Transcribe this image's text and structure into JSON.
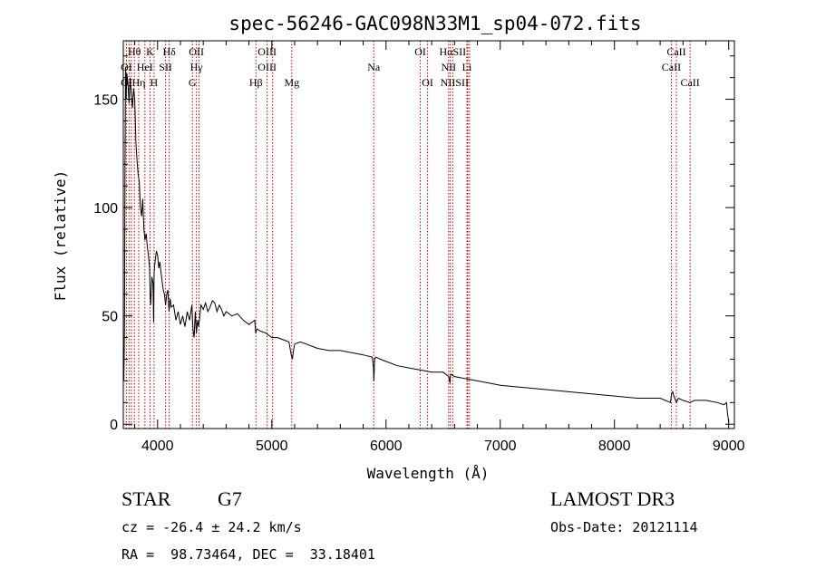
{
  "chart_data": {
    "type": "line",
    "title": "spec-56246-GAC098N33M1_sp04-072.fits",
    "xlabel": "Wavelength (Å)",
    "ylabel": "Flux (relative)",
    "xlim": [
      3700,
      9050
    ],
    "ylim": [
      -2,
      177
    ],
    "x_ticks": [
      4000,
      5000,
      6000,
      7000,
      8000,
      9000
    ],
    "y_ticks": [
      0,
      50,
      100,
      150
    ],
    "series": [
      {
        "name": "flux",
        "x": [
          3700,
          3705,
          3710,
          3715,
          3720,
          3725,
          3730,
          3740,
          3750,
          3760,
          3770,
          3780,
          3790,
          3800,
          3810,
          3820,
          3830,
          3840,
          3850,
          3860,
          3870,
          3880,
          3890,
          3900,
          3910,
          3920,
          3930,
          3935,
          3940,
          3950,
          3960,
          3965,
          3970,
          3980,
          3990,
          4000,
          4010,
          4020,
          4030,
          4040,
          4050,
          4060,
          4070,
          4080,
          4090,
          4100,
          4110,
          4120,
          4140,
          4160,
          4180,
          4200,
          4220,
          4240,
          4260,
          4280,
          4300,
          4310,
          4320,
          4330,
          4340,
          4350,
          4360,
          4370,
          4380,
          4400,
          4420,
          4440,
          4460,
          4480,
          4500,
          4520,
          4540,
          4560,
          4580,
          4600,
          4650,
          4700,
          4750,
          4800,
          4850,
          4860,
          4870,
          4900,
          4950,
          5000,
          5050,
          5100,
          5150,
          5170,
          5180,
          5190,
          5200,
          5250,
          5300,
          5400,
          5500,
          5600,
          5700,
          5800,
          5880,
          5890,
          5893,
          5896,
          5900,
          5910,
          5950,
          6000,
          6100,
          6200,
          6300,
          6400,
          6500,
          6550,
          6560,
          6563,
          6566,
          6570,
          6600,
          6700,
          6800,
          6900,
          7000,
          7200,
          7400,
          7600,
          7800,
          8000,
          8200,
          8400,
          8490,
          8500,
          8510,
          8520,
          8542,
          8560,
          8600,
          8662,
          8700,
          8800,
          8900,
          8960,
          8980,
          8990,
          9000
        ],
        "y": [
          32,
          20,
          45,
          120,
          165,
          150,
          162,
          158,
          148,
          160,
          152,
          146,
          155,
          150,
          130,
          122,
          115,
          112,
          100,
          96,
          104,
          90,
          85,
          88,
          82,
          78,
          72,
          60,
          55,
          68,
          65,
          47,
          70,
          76,
          80,
          78,
          72,
          75,
          70,
          66,
          62,
          60,
          55,
          60,
          62,
          52,
          58,
          54,
          55,
          48,
          52,
          46,
          50,
          45,
          52,
          48,
          55,
          44,
          40,
          52,
          42,
          48,
          45,
          50,
          55,
          53,
          56,
          52,
          54,
          57,
          56,
          52,
          55,
          53,
          50,
          52,
          50,
          51,
          48,
          46,
          48,
          42,
          44,
          43,
          42,
          40,
          40,
          39,
          38,
          32,
          30,
          34,
          37,
          38,
          37,
          35,
          34,
          34,
          33,
          32,
          31,
          26,
          20,
          24,
          30,
          31,
          30,
          29,
          27,
          26,
          25,
          24,
          24,
          22,
          19,
          22,
          23,
          23,
          22,
          21,
          20,
          19,
          18,
          17,
          16,
          15,
          14,
          13,
          12,
          12,
          10,
          14,
          15,
          13,
          10,
          12,
          11,
          10,
          11,
          11,
          10,
          9,
          10,
          5,
          1
        ]
      }
    ],
    "line_markers": [
      {
        "label": "Hθ",
        "x": 3797,
        "row": 1
      },
      {
        "label": "K",
        "x": 3934,
        "row": 1
      },
      {
        "label": "Hδ",
        "x": 4102,
        "row": 1
      },
      {
        "label": "OII",
        "x": 4340,
        "row": 1
      },
      {
        "label": "OIII",
        "x": 4959,
        "row": 1
      },
      {
        "label": "OI",
        "x": 6300,
        "row": 1
      },
      {
        "label": "HαSII",
        "x": 6584,
        "row": 1
      },
      {
        "label": "CaII",
        "x": 8542,
        "row": 1
      },
      {
        "label": "OI",
        "x": 3727,
        "row": 2
      },
      {
        "label": "HeI",
        "x": 3889,
        "row": 2
      },
      {
        "label": "SII",
        "x": 4070,
        "row": 2
      },
      {
        "label": "Hγ",
        "x": 4340,
        "row": 2
      },
      {
        "label": "OIII",
        "x": 4959,
        "row": 2
      },
      {
        "label": "Na",
        "x": 5893,
        "row": 2
      },
      {
        "label": "NII",
        "x": 6548,
        "row": 2
      },
      {
        "label": "Li",
        "x": 6708,
        "row": 2
      },
      {
        "label": "CaII",
        "x": 8498,
        "row": 2
      },
      {
        "label": "OI",
        "x": 3727,
        "row": 3
      },
      {
        "label": "Hη",
        "x": 3835,
        "row": 3
      },
      {
        "label": "H",
        "x": 3969,
        "row": 3
      },
      {
        "label": "G",
        "x": 4305,
        "row": 3
      },
      {
        "label": "Hβ",
        "x": 4861,
        "row": 3
      },
      {
        "label": "Mg",
        "x": 5175,
        "row": 3
      },
      {
        "label": "OI",
        "x": 6364,
        "row": 3
      },
      {
        "label": "NIISII",
        "x": 6600,
        "row": 3
      },
      {
        "label": "CaII",
        "x": 8662,
        "row": 3
      }
    ],
    "line_marker_positions": [
      3727,
      3750,
      3770,
      3797,
      3835,
      3889,
      3934,
      3969,
      4070,
      4102,
      4305,
      4340,
      4363,
      4861,
      4959,
      5007,
      5175,
      5893,
      6300,
      6364,
      6548,
      6563,
      6584,
      6708,
      6716,
      6731,
      8498,
      8542,
      8662
    ]
  },
  "footer": {
    "object_class": "STAR",
    "subclass": "G7",
    "redshift": "cz = -26.4 ± 24.2 km/s",
    "coords": "RA =  98.73464, DEC =  33.18401",
    "survey": "LAMOST DR3",
    "obs_date": "Obs-Date: 20121114"
  }
}
